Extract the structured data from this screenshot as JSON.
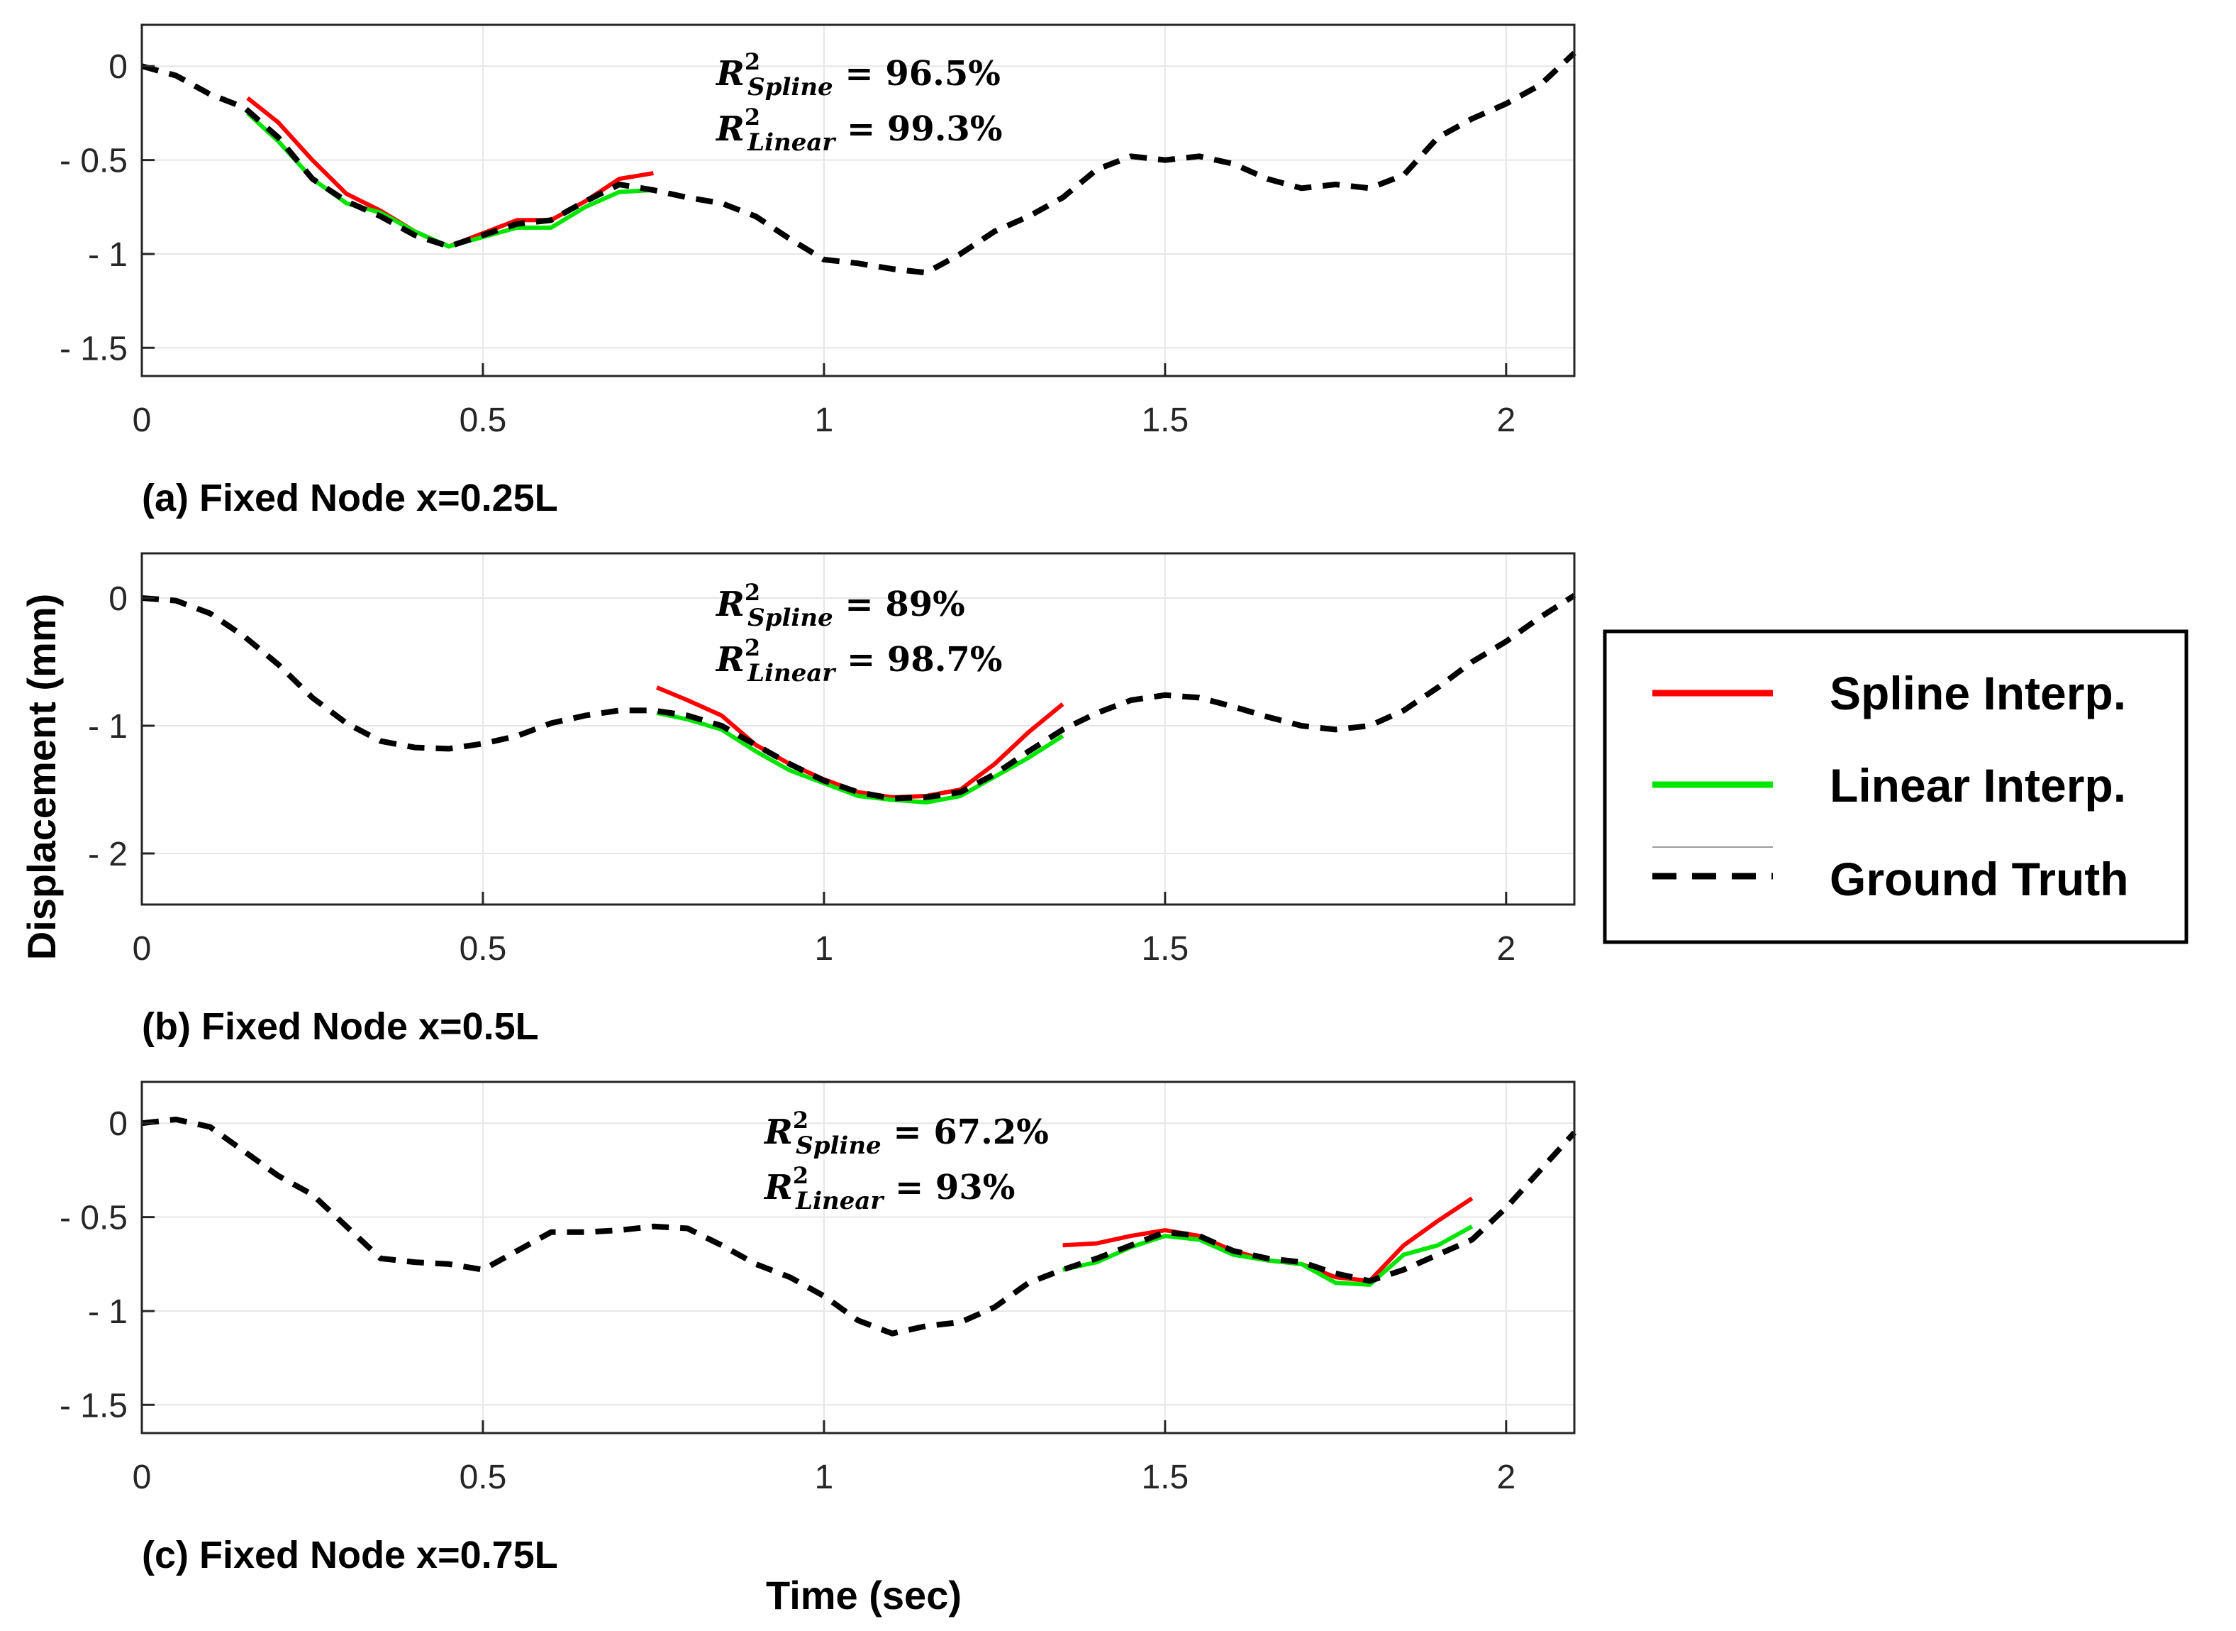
{
  "chart_data": [
    {
      "type": "line",
      "caption": "(a) Fixed Node x=0.25L",
      "xlim": [
        0,
        2.1
      ],
      "ylim": [
        -1.65,
        0.22
      ],
      "x_ticks": [
        {
          "v": 0,
          "label": "0"
        },
        {
          "v": 0.5,
          "label": "0.5"
        },
        {
          "v": 1,
          "label": "1"
        },
        {
          "v": 1.5,
          "label": "1.5"
        },
        {
          "v": 2,
          "label": "2"
        }
      ],
      "y_ticks": [
        {
          "v": 0,
          "label": "0"
        },
        {
          "v": -0.5,
          "label": "- 0.5"
        },
        {
          "v": -1,
          "label": "- 1"
        },
        {
          "v": -1.5,
          "label": "- 1.5"
        }
      ],
      "annotation": {
        "spline_label": "R",
        "spline_sub": "Spline",
        "spline_value": " = 96.5%",
        "linear_label": "R",
        "linear_sub": "Linear",
        "linear_value": " = 99.3%",
        "sup": "2"
      },
      "series": [
        {
          "name": "Ground Truth",
          "x": [
            0,
            0.05,
            0.1,
            0.15,
            0.2,
            0.25,
            0.3,
            0.35,
            0.4,
            0.45,
            0.5,
            0.55,
            0.6,
            0.65,
            0.7,
            0.75,
            0.8,
            0.85,
            0.9,
            0.95,
            1.0,
            1.05,
            1.1,
            1.15,
            1.2,
            1.25,
            1.3,
            1.35,
            1.4,
            1.45,
            1.5,
            1.55,
            1.6,
            1.65,
            1.7,
            1.75,
            1.8,
            1.85,
            1.9,
            1.95,
            2.0,
            2.05,
            2.1
          ],
          "values": [
            0,
            -0.05,
            -0.15,
            -0.22,
            -0.38,
            -0.6,
            -0.72,
            -0.8,
            -0.9,
            -0.96,
            -0.9,
            -0.84,
            -0.82,
            -0.72,
            -0.63,
            -0.66,
            -0.7,
            -0.73,
            -0.8,
            -0.92,
            -1.03,
            -1.05,
            -1.08,
            -1.1,
            -1.0,
            -0.88,
            -0.8,
            -0.7,
            -0.55,
            -0.48,
            -0.5,
            -0.48,
            -0.52,
            -0.6,
            -0.65,
            -0.63,
            -0.65,
            -0.58,
            -0.38,
            -0.28,
            -0.2,
            -0.1,
            0.07
          ]
        },
        {
          "name": "Spline Interp.",
          "x": [
            0.155,
            0.2,
            0.25,
            0.3,
            0.35,
            0.4,
            0.45,
            0.5,
            0.55,
            0.6,
            0.65,
            0.7,
            0.75
          ],
          "values": [
            -0.17,
            -0.3,
            -0.5,
            -0.68,
            -0.77,
            -0.88,
            -0.96,
            -0.89,
            -0.82,
            -0.82,
            -0.72,
            -0.6,
            -0.57
          ]
        },
        {
          "name": "Linear Interp.",
          "x": [
            0.155,
            0.2,
            0.25,
            0.3,
            0.35,
            0.4,
            0.45,
            0.5,
            0.55,
            0.6,
            0.65,
            0.7,
            0.75
          ],
          "values": [
            -0.25,
            -0.4,
            -0.6,
            -0.73,
            -0.78,
            -0.88,
            -0.96,
            -0.91,
            -0.86,
            -0.86,
            -0.75,
            -0.67,
            -0.66
          ]
        }
      ]
    },
    {
      "type": "line",
      "caption": "(b) Fixed Node x=0.5L",
      "xlim": [
        0,
        2.1
      ],
      "ylim": [
        -2.4,
        0.35
      ],
      "x_ticks": [
        {
          "v": 0,
          "label": "0"
        },
        {
          "v": 0.5,
          "label": "0.5"
        },
        {
          "v": 1,
          "label": "1"
        },
        {
          "v": 1.5,
          "label": "1.5"
        },
        {
          "v": 2,
          "label": "2"
        }
      ],
      "y_ticks": [
        {
          "v": 0,
          "label": "0"
        },
        {
          "v": -1,
          "label": "- 1"
        },
        {
          "v": -2,
          "label": "- 2"
        }
      ],
      "annotation": {
        "spline_label": "R",
        "spline_sub": "Spline",
        "spline_value": " = 89%",
        "linear_label": "R",
        "linear_sub": "Linear",
        "linear_value": " = 98.7%",
        "sup": "2"
      },
      "series": [
        {
          "name": "Ground Truth",
          "x": [
            0,
            0.05,
            0.1,
            0.15,
            0.2,
            0.25,
            0.3,
            0.35,
            0.4,
            0.45,
            0.5,
            0.55,
            0.6,
            0.65,
            0.7,
            0.75,
            0.8,
            0.85,
            0.9,
            0.95,
            1.0,
            1.05,
            1.1,
            1.15,
            1.2,
            1.25,
            1.3,
            1.35,
            1.4,
            1.45,
            1.5,
            1.55,
            1.6,
            1.65,
            1.7,
            1.75,
            1.8,
            1.85,
            1.9,
            1.95,
            2.0,
            2.05,
            2.1
          ],
          "values": [
            0,
            -0.02,
            -0.12,
            -0.3,
            -0.52,
            -0.78,
            -0.98,
            -1.12,
            -1.17,
            -1.18,
            -1.14,
            -1.08,
            -0.98,
            -0.92,
            -0.88,
            -0.88,
            -0.92,
            -1.0,
            -1.15,
            -1.3,
            -1.43,
            -1.52,
            -1.57,
            -1.56,
            -1.52,
            -1.38,
            -1.2,
            -1.03,
            -0.9,
            -0.8,
            -0.76,
            -0.78,
            -0.85,
            -0.93,
            -1.0,
            -1.03,
            -1.0,
            -0.88,
            -0.7,
            -0.5,
            -0.34,
            -0.15,
            0.02
          ]
        },
        {
          "name": "Spline Interp.",
          "x": [
            0.755,
            0.8,
            0.85,
            0.9,
            0.95,
            1.0,
            1.05,
            1.1,
            1.15,
            1.2,
            1.25,
            1.3,
            1.35
          ],
          "values": [
            -0.7,
            -0.8,
            -0.92,
            -1.15,
            -1.3,
            -1.42,
            -1.52,
            -1.56,
            -1.55,
            -1.5,
            -1.3,
            -1.05,
            -0.83
          ]
        },
        {
          "name": "Linear Interp.",
          "x": [
            0.755,
            0.8,
            0.85,
            0.9,
            0.95,
            1.0,
            1.05,
            1.1,
            1.15,
            1.2,
            1.25,
            1.3,
            1.35
          ],
          "values": [
            -0.9,
            -0.95,
            -1.03,
            -1.2,
            -1.35,
            -1.45,
            -1.55,
            -1.58,
            -1.6,
            -1.55,
            -1.4,
            -1.25,
            -1.08
          ]
        }
      ]
    },
    {
      "type": "line",
      "caption": "(c) Fixed Node x=0.75L",
      "xlim": [
        0,
        2.1
      ],
      "ylim": [
        -1.65,
        0.22
      ],
      "x_ticks": [
        {
          "v": 0,
          "label": "0"
        },
        {
          "v": 0.5,
          "label": "0.5"
        },
        {
          "v": 1,
          "label": "1"
        },
        {
          "v": 1.5,
          "label": "1.5"
        },
        {
          "v": 2,
          "label": "2"
        }
      ],
      "y_ticks": [
        {
          "v": 0,
          "label": "0"
        },
        {
          "v": -0.5,
          "label": "- 0.5"
        },
        {
          "v": -1,
          "label": "- 1"
        },
        {
          "v": -1.5,
          "label": "- 1.5"
        }
      ],
      "annotation": {
        "spline_label": "R",
        "spline_sub": "Spline",
        "spline_value": " = 67.2%",
        "linear_label": "R",
        "linear_sub": "Linear",
        "linear_value": " = 93%",
        "sup": "2"
      },
      "series": [
        {
          "name": "Ground Truth",
          "x": [
            0,
            0.05,
            0.1,
            0.15,
            0.2,
            0.25,
            0.3,
            0.35,
            0.4,
            0.45,
            0.5,
            0.55,
            0.6,
            0.65,
            0.7,
            0.75,
            0.8,
            0.85,
            0.9,
            0.95,
            1.0,
            1.05,
            1.1,
            1.15,
            1.2,
            1.25,
            1.3,
            1.35,
            1.4,
            1.45,
            1.5,
            1.55,
            1.6,
            1.65,
            1.7,
            1.75,
            1.8,
            1.85,
            1.9,
            1.95,
            2.0,
            2.05,
            2.1
          ],
          "values": [
            0,
            0.02,
            -0.02,
            -0.15,
            -0.28,
            -0.38,
            -0.55,
            -0.72,
            -0.74,
            -0.75,
            -0.78,
            -0.68,
            -0.58,
            -0.58,
            -0.57,
            -0.55,
            -0.56,
            -0.65,
            -0.75,
            -0.82,
            -0.92,
            -1.05,
            -1.12,
            -1.08,
            -1.06,
            -0.98,
            -0.85,
            -0.78,
            -0.72,
            -0.65,
            -0.58,
            -0.6,
            -0.68,
            -0.72,
            -0.74,
            -0.8,
            -0.84,
            -0.78,
            -0.7,
            -0.62,
            -0.45,
            -0.25,
            -0.05
          ]
        },
        {
          "name": "Spline Interp.",
          "x": [
            1.35,
            1.4,
            1.45,
            1.5,
            1.55,
            1.6,
            1.65,
            1.7,
            1.75,
            1.8,
            1.85,
            1.9,
            1.95
          ],
          "values": [
            -0.65,
            -0.64,
            -0.6,
            -0.57,
            -0.6,
            -0.68,
            -0.73,
            -0.75,
            -0.82,
            -0.84,
            -0.65,
            -0.52,
            -0.4
          ]
        },
        {
          "name": "Linear Interp.",
          "x": [
            1.35,
            1.4,
            1.45,
            1.5,
            1.55,
            1.6,
            1.65,
            1.7,
            1.75,
            1.8,
            1.85,
            1.9,
            1.95
          ],
          "values": [
            -0.78,
            -0.74,
            -0.66,
            -0.6,
            -0.62,
            -0.7,
            -0.73,
            -0.75,
            -0.85,
            -0.86,
            -0.7,
            -0.65,
            -0.55
          ]
        }
      ]
    }
  ],
  "axes": {
    "xlabel": "Time (sec)",
    "ylabel": "Displacement (mm)"
  },
  "legend": {
    "position": "right",
    "entries": [
      {
        "label": "Spline Interp.",
        "color": "#ff0000",
        "style": "solid"
      },
      {
        "label": "Linear Interp.",
        "color": "#00e600",
        "style": "solid"
      },
      {
        "label": "Ground Truth",
        "color": "#000000",
        "style": "dashed"
      }
    ]
  },
  "colors": {
    "spline": "#ff0000",
    "linear": "#00e600",
    "ground_truth": "#000000",
    "grid": "#e6e6e6",
    "axis": "#262626"
  }
}
